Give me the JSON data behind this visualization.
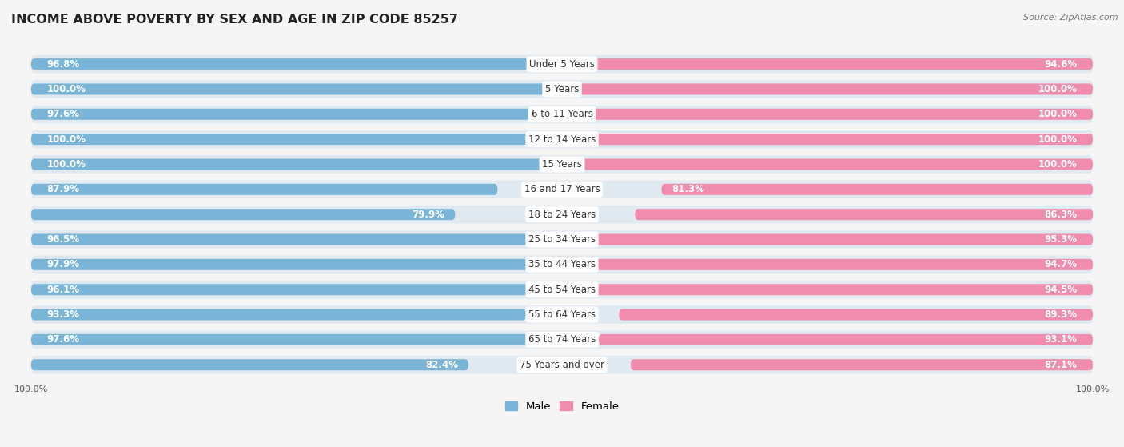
{
  "title": "INCOME ABOVE POVERTY BY SEX AND AGE IN ZIP CODE 85257",
  "source": "Source: ZipAtlas.com",
  "categories": [
    "Under 5 Years",
    "5 Years",
    "6 to 11 Years",
    "12 to 14 Years",
    "15 Years",
    "16 and 17 Years",
    "18 to 24 Years",
    "25 to 34 Years",
    "35 to 44 Years",
    "45 to 54 Years",
    "55 to 64 Years",
    "65 to 74 Years",
    "75 Years and over"
  ],
  "male": [
    96.8,
    100.0,
    97.6,
    100.0,
    100.0,
    87.9,
    79.9,
    96.5,
    97.9,
    96.1,
    93.3,
    97.6,
    82.4
  ],
  "female": [
    94.6,
    100.0,
    100.0,
    100.0,
    100.0,
    81.3,
    86.3,
    95.3,
    94.7,
    94.5,
    89.3,
    93.1,
    87.1
  ],
  "male_color": "#7ab5d8",
  "male_color_light": "#b8d8ed",
  "female_color": "#f08cad",
  "female_color_light": "#f7c0d4",
  "bg_row_color": "#e8eef2",
  "background_color": "#f5f5f5",
  "title_fontsize": 11.5,
  "label_fontsize": 8.5,
  "value_fontsize": 8.5,
  "tick_fontsize": 8,
  "legend_fontsize": 9.5
}
